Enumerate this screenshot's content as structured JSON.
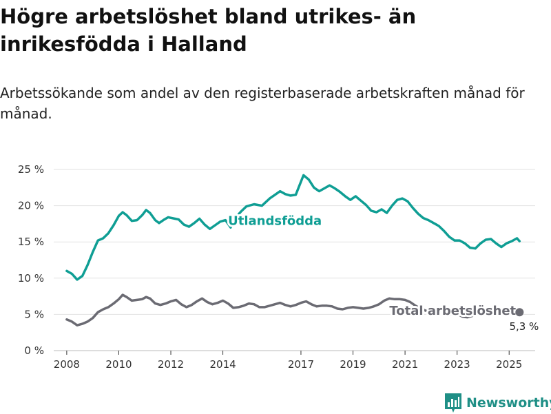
{
  "title": "Högre arbetslöshet bland utrikes- än inrikesfödda i Halland",
  "subtitle": "Arbetssökande som andel av den registerbaserade arbetskraften månad för månad.",
  "brand": {
    "name": "Newsworthy",
    "logo_icon": "bar-chart-logo-icon"
  },
  "colors": {
    "utlandsfodda": "#0f9e94",
    "total": "#6b6b73",
    "grid": "#e2e2e2",
    "axis": "#333333"
  },
  "chart_data": {
    "type": "line",
    "y_ticks": [
      0,
      5,
      10,
      15,
      20,
      25
    ],
    "y_tick_labels": [
      "0 %",
      "5 %",
      "10 %",
      "15 %",
      "20 %",
      "25 %"
    ],
    "x_ticks": [
      2008,
      2010,
      2012,
      2014,
      2017,
      2019,
      2021,
      2023,
      2025
    ],
    "x_tick_labels": [
      "2008",
      "2010",
      "2012",
      "2014",
      "2017",
      "2019",
      "2021",
      "2023",
      "2025"
    ],
    "xlim": [
      2007.5,
      2026.0
    ],
    "ylim": [
      0,
      25
    ],
    "grid": true,
    "series": [
      {
        "name": "Utlandsfödda",
        "points": [
          [
            2008.0,
            11.0
          ],
          [
            2008.2,
            10.6
          ],
          [
            2008.4,
            9.8
          ],
          [
            2008.6,
            10.3
          ],
          [
            2008.8,
            11.8
          ],
          [
            2009.0,
            13.6
          ],
          [
            2009.2,
            15.2
          ],
          [
            2009.4,
            15.5
          ],
          [
            2009.6,
            16.2
          ],
          [
            2009.8,
            17.3
          ],
          [
            2010.0,
            18.6
          ],
          [
            2010.15,
            19.1
          ],
          [
            2010.3,
            18.7
          ],
          [
            2010.5,
            17.9
          ],
          [
            2010.7,
            18.0
          ],
          [
            2010.9,
            18.7
          ],
          [
            2011.05,
            19.4
          ],
          [
            2011.2,
            19.0
          ],
          [
            2011.4,
            18.0
          ],
          [
            2011.55,
            17.6
          ],
          [
            2011.75,
            18.1
          ],
          [
            2011.9,
            18.4
          ],
          [
            2012.3,
            18.1
          ],
          [
            2012.5,
            17.4
          ],
          [
            2012.7,
            17.1
          ],
          [
            2012.9,
            17.6
          ],
          [
            2013.1,
            18.2
          ],
          [
            2013.3,
            17.4
          ],
          [
            2013.5,
            16.8
          ],
          [
            2013.7,
            17.3
          ],
          [
            2013.9,
            17.8
          ],
          [
            2014.1,
            18.0
          ],
          [
            2014.3,
            17.0
          ],
          [
            2014.5,
            18.4
          ],
          [
            2014.7,
            19.2
          ],
          [
            2014.9,
            19.9
          ],
          [
            2015.2,
            20.2
          ],
          [
            2015.5,
            20.0
          ],
          [
            2015.8,
            21.0
          ],
          [
            2016.0,
            21.5
          ],
          [
            2016.2,
            22.0
          ],
          [
            2016.4,
            21.6
          ],
          [
            2016.6,
            21.4
          ],
          [
            2016.8,
            21.5
          ],
          [
            2017.0,
            23.3
          ],
          [
            2017.1,
            24.2
          ],
          [
            2017.3,
            23.6
          ],
          [
            2017.5,
            22.5
          ],
          [
            2017.7,
            22.0
          ],
          [
            2017.9,
            22.4
          ],
          [
            2018.1,
            22.8
          ],
          [
            2018.3,
            22.4
          ],
          [
            2018.5,
            21.9
          ],
          [
            2018.7,
            21.3
          ],
          [
            2018.9,
            20.8
          ],
          [
            2019.1,
            21.3
          ],
          [
            2019.3,
            20.7
          ],
          [
            2019.5,
            20.1
          ],
          [
            2019.7,
            19.3
          ],
          [
            2019.9,
            19.1
          ],
          [
            2020.1,
            19.5
          ],
          [
            2020.3,
            19.0
          ],
          [
            2020.5,
            20.0
          ],
          [
            2020.7,
            20.8
          ],
          [
            2020.9,
            21.0
          ],
          [
            2021.1,
            20.6
          ],
          [
            2021.3,
            19.7
          ],
          [
            2021.5,
            18.9
          ],
          [
            2021.7,
            18.3
          ],
          [
            2021.9,
            18.0
          ],
          [
            2022.1,
            17.6
          ],
          [
            2022.3,
            17.2
          ],
          [
            2022.5,
            16.5
          ],
          [
            2022.7,
            15.7
          ],
          [
            2022.9,
            15.2
          ],
          [
            2023.1,
            15.2
          ],
          [
            2023.3,
            14.8
          ],
          [
            2023.5,
            14.2
          ],
          [
            2023.7,
            14.1
          ],
          [
            2023.9,
            14.8
          ],
          [
            2024.1,
            15.3
          ],
          [
            2024.3,
            15.4
          ],
          [
            2024.5,
            14.8
          ],
          [
            2024.7,
            14.3
          ],
          [
            2024.9,
            14.8
          ],
          [
            2025.1,
            15.1
          ],
          [
            2025.3,
            15.5
          ],
          [
            2025.4,
            15.1
          ]
        ]
      },
      {
        "name": "Total arbetslöshet",
        "points": [
          [
            2008.0,
            4.3
          ],
          [
            2008.2,
            4.0
          ],
          [
            2008.4,
            3.5
          ],
          [
            2008.6,
            3.7
          ],
          [
            2008.8,
            4.0
          ],
          [
            2009.0,
            4.5
          ],
          [
            2009.2,
            5.3
          ],
          [
            2009.4,
            5.7
          ],
          [
            2009.6,
            6.0
          ],
          [
            2009.8,
            6.5
          ],
          [
            2010.0,
            7.1
          ],
          [
            2010.15,
            7.7
          ],
          [
            2010.3,
            7.4
          ],
          [
            2010.5,
            6.9
          ],
          [
            2010.7,
            7.0
          ],
          [
            2010.9,
            7.1
          ],
          [
            2011.05,
            7.4
          ],
          [
            2011.2,
            7.2
          ],
          [
            2011.4,
            6.5
          ],
          [
            2011.6,
            6.3
          ],
          [
            2011.8,
            6.5
          ],
          [
            2012.0,
            6.8
          ],
          [
            2012.2,
            7.0
          ],
          [
            2012.4,
            6.4
          ],
          [
            2012.6,
            6.0
          ],
          [
            2012.8,
            6.3
          ],
          [
            2013.0,
            6.8
          ],
          [
            2013.2,
            7.2
          ],
          [
            2013.4,
            6.7
          ],
          [
            2013.6,
            6.4
          ],
          [
            2013.8,
            6.6
          ],
          [
            2014.0,
            6.9
          ],
          [
            2014.2,
            6.5
          ],
          [
            2014.4,
            5.9
          ],
          [
            2014.6,
            6.0
          ],
          [
            2014.8,
            6.2
          ],
          [
            2015.0,
            6.5
          ],
          [
            2015.2,
            6.4
          ],
          [
            2015.4,
            6.0
          ],
          [
            2015.6,
            6.0
          ],
          [
            2015.8,
            6.2
          ],
          [
            2016.0,
            6.4
          ],
          [
            2016.2,
            6.6
          ],
          [
            2016.4,
            6.3
          ],
          [
            2016.6,
            6.1
          ],
          [
            2016.8,
            6.3
          ],
          [
            2017.0,
            6.6
          ],
          [
            2017.2,
            6.8
          ],
          [
            2017.4,
            6.4
          ],
          [
            2017.6,
            6.1
          ],
          [
            2017.8,
            6.2
          ],
          [
            2018.0,
            6.2
          ],
          [
            2018.2,
            6.1
          ],
          [
            2018.4,
            5.8
          ],
          [
            2018.6,
            5.7
          ],
          [
            2018.8,
            5.9
          ],
          [
            2019.0,
            6.0
          ],
          [
            2019.2,
            5.9
          ],
          [
            2019.4,
            5.8
          ],
          [
            2019.6,
            5.9
          ],
          [
            2019.8,
            6.1
          ],
          [
            2020.0,
            6.4
          ],
          [
            2020.2,
            6.9
          ],
          [
            2020.4,
            7.2
          ],
          [
            2020.6,
            7.1
          ],
          [
            2020.8,
            7.1
          ],
          [
            2021.0,
            7.0
          ],
          [
            2021.2,
            6.7
          ],
          [
            2021.4,
            6.2
          ],
          [
            2021.6,
            5.8
          ],
          [
            2021.8,
            5.5
          ],
          [
            2022.0,
            5.3
          ],
          [
            2022.2,
            5.1
          ],
          [
            2022.4,
            5.0
          ],
          [
            2022.6,
            4.9
          ],
          [
            2022.8,
            5.0
          ],
          [
            2023.0,
            5.1
          ],
          [
            2023.2,
            4.7
          ],
          [
            2023.4,
            4.6
          ],
          [
            2023.6,
            4.8
          ],
          [
            2023.8,
            5.0
          ],
          [
            2024.0,
            5.3
          ],
          [
            2024.2,
            5.5
          ],
          [
            2024.4,
            5.2
          ],
          [
            2024.6,
            5.1
          ],
          [
            2024.8,
            5.4
          ],
          [
            2025.0,
            5.6
          ],
          [
            2025.2,
            5.5
          ],
          [
            2025.4,
            5.3
          ]
        ]
      }
    ],
    "series_labels": [
      {
        "text": "Utlandsfödda",
        "x": 2014.2,
        "y": 18.0,
        "color_key": "utlandsfodda"
      },
      {
        "text": "Total arbetslöshet",
        "x": 2020.4,
        "y": 5.6,
        "color_key": "total"
      }
    ],
    "end_label": {
      "text": "5,3 %",
      "x": 2025.4,
      "y": 5.3
    }
  }
}
